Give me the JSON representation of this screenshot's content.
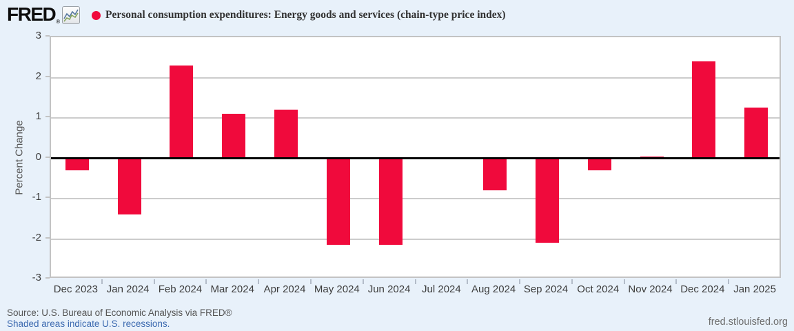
{
  "header": {
    "logo_text": "FRED",
    "registered_mark": "®",
    "title": "Personal consumption expenditures: Energy goods and services (chain-type price index)"
  },
  "chart_data": {
    "type": "bar",
    "title": "Personal consumption expenditures: Energy goods and services (chain-type price index)",
    "ylabel": "Percent Change",
    "xlabel": "",
    "categories": [
      "Dec 2023",
      "Jan 2024",
      "Feb 2024",
      "Mar 2024",
      "Apr 2024",
      "May 2024",
      "Jun 2024",
      "Jul 2024",
      "Aug 2024",
      "Sep 2024",
      "Oct 2024",
      "Nov 2024",
      "Dec 2024",
      "Jan 2025"
    ],
    "values": [
      -0.3,
      -1.4,
      2.3,
      1.1,
      1.2,
      -2.15,
      -2.15,
      0,
      -0.8,
      -2.1,
      -0.3,
      0.05,
      2.4,
      1.25
    ],
    "ylim": [
      -3,
      3
    ],
    "yticks": [
      3,
      2,
      1,
      0,
      -1,
      -2,
      -3
    ],
    "grid": true,
    "legend_position": "top-left",
    "series_name": "Personal consumption expenditures: Energy goods and services (chain-type price index)"
  },
  "footer": {
    "source_text": "Source: U.S. Bureau of Economic Analysis via FRED®",
    "recession_note": "Shaded areas indicate U.S. recessions.",
    "site_url": "fred.stlouisfed.org"
  },
  "colors": {
    "page_background": "#e8f1fa",
    "bar": "#f00a3c",
    "legend_dot": "#f00a3c",
    "link_blue": "#3c6ab0",
    "axis_text": "#3d3d3d",
    "gridline": "#cccccc",
    "zero_line": "#000000",
    "plot_border": "#c3c3c3",
    "tick": "#b3bcc9"
  }
}
